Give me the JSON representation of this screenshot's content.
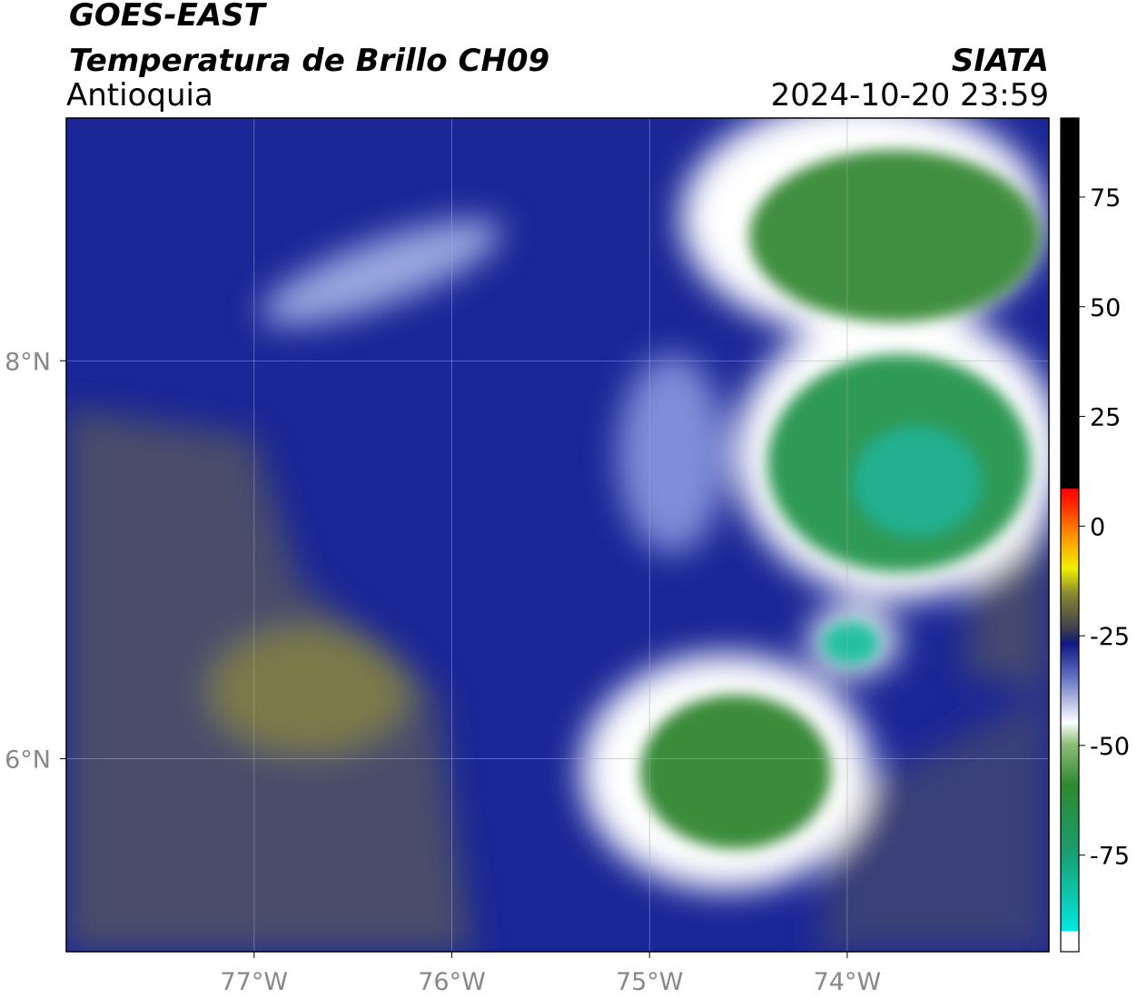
{
  "header": {
    "title": "GOES-EAST",
    "subtitle": "Temperatura de Brillo CH09",
    "region": "Antioquia",
    "source": "SIATA",
    "datetime": "2024-10-20 23:59"
  },
  "map": {
    "xlim": [
      -77.95,
      -72.98
    ],
    "ylim": [
      5.03,
      9.22
    ],
    "xticks": [
      {
        "value": -77,
        "label": "77°W"
      },
      {
        "value": -76,
        "label": "76°W"
      },
      {
        "value": -75,
        "label": "75°W"
      },
      {
        "value": -74,
        "label": "74°W"
      }
    ],
    "yticks": [
      {
        "value": 8,
        "label": "8°N"
      },
      {
        "value": 6,
        "label": "6°N"
      }
    ]
  },
  "colorbar": {
    "lim": [
      -97,
      93
    ],
    "ticks": [
      75,
      50,
      25,
      0,
      -25,
      -50,
      -75
    ]
  }
}
